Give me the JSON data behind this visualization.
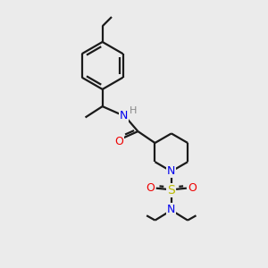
{
  "bg_color": "#ebebeb",
  "bond_color": "#1a1a1a",
  "N_color": "#0000ee",
  "O_color": "#ee0000",
  "S_color": "#bbbb00",
  "H_color": "#888888",
  "line_width": 1.6,
  "figsize": [
    3.0,
    3.0
  ],
  "dpi": 100,
  "xlim": [
    0,
    10
  ],
  "ylim": [
    0,
    10
  ]
}
